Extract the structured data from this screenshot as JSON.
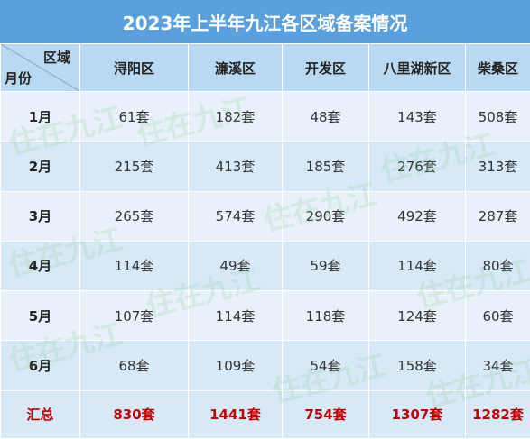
{
  "title": "2023年上半年九江各区域备案情况",
  "corner": {
    "region_label": "区域",
    "month_label": "月份"
  },
  "regions": [
    "浔阳区",
    "濂溪区",
    "开发区",
    "八里湖新区",
    "柴桑区"
  ],
  "rows": [
    {
      "month": "1月",
      "values": [
        "61套",
        "182套",
        "48套",
        "143套",
        "508套"
      ]
    },
    {
      "month": "2月",
      "values": [
        "215套",
        "413套",
        "185套",
        "276套",
        "313套"
      ]
    },
    {
      "month": "3月",
      "values": [
        "265套",
        "574套",
        "290套",
        "492套",
        "287套"
      ]
    },
    {
      "month": "4月",
      "values": [
        "114套",
        "49套",
        "59套",
        "114套",
        "80套"
      ]
    },
    {
      "month": "5月",
      "values": [
        "107套",
        "114套",
        "118套",
        "124套",
        "60套"
      ]
    },
    {
      "month": "6月",
      "values": [
        "68套",
        "109套",
        "54套",
        "158套",
        "34套"
      ]
    }
  ],
  "total": {
    "label": "汇总",
    "values": [
      "830套",
      "1441套",
      "754套",
      "1307套",
      "1282套"
    ]
  },
  "watermark": "住在九江",
  "colors": {
    "title_bg": "#5aa0dc",
    "header_bg": "#b9d8f2",
    "row_light": "#e8f1fa",
    "row_dark": "#d7e8f7",
    "total_text": "#c00000"
  }
}
